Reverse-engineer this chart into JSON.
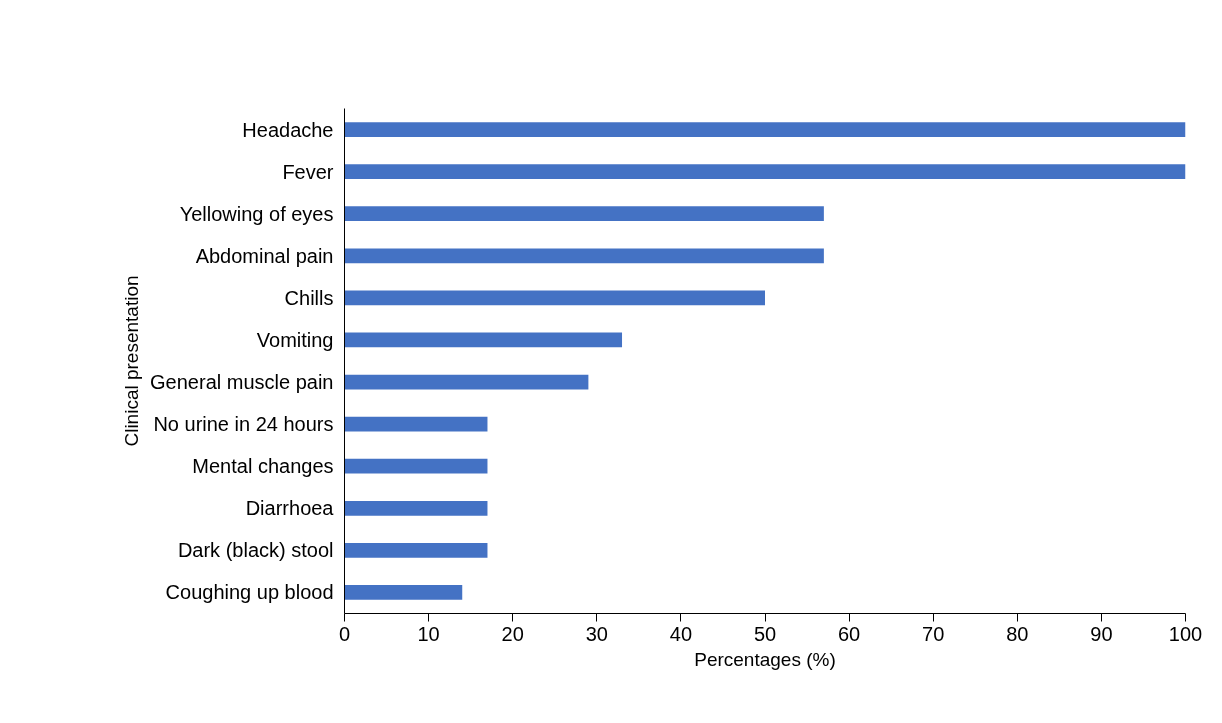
{
  "chart_data": {
    "type": "bar",
    "orientation": "horizontal",
    "xlabel": "Percentages (%)",
    "ylabel": "Clinical presentation",
    "categories": [
      "Headache",
      "Fever",
      "Yellowing of eyes",
      "Abdominal pain",
      "Chills",
      "Vomiting",
      "General muscle pain",
      "No urine in 24 hours",
      "Mental changes",
      "Diarrhoea",
      "Dark (black) stool",
      "Coughing up blood"
    ],
    "values": [
      100,
      100,
      57,
      57,
      50,
      33,
      29,
      17,
      17,
      17,
      17,
      14
    ],
    "color": "#4472c4",
    "xlim": [
      0,
      100
    ],
    "xticks": [
      0,
      10,
      20,
      30,
      40,
      50,
      60,
      70,
      80,
      90,
      100
    ],
    "grid": false
  }
}
